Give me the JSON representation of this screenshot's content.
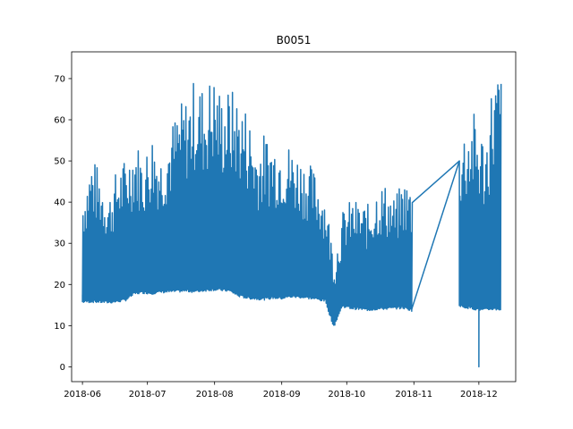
{
  "chart_data": {
    "type": "line",
    "title": "B0051",
    "xlabel": "",
    "ylabel": "",
    "x_range": [
      "2018-05-27",
      "2018-12-18"
    ],
    "ylim": [
      -3.6,
      76.5
    ],
    "x_ticks": [
      "2018-06",
      "2018-07",
      "2018-08",
      "2018-09",
      "2018-10",
      "2018-11",
      "2018-12"
    ],
    "x_tick_dates": [
      "2018-06-01",
      "2018-07-01",
      "2018-08-01",
      "2018-09-01",
      "2018-10-01",
      "2018-11-01",
      "2018-12-01"
    ],
    "y_ticks": [
      0,
      10,
      20,
      30,
      40,
      50,
      60,
      70
    ],
    "grid": false,
    "legend": "none",
    "series": [
      {
        "color": "#1f77b4",
        "x": [
          "2018-06-01",
          "2018-06-05",
          "2018-06-09",
          "2018-06-13",
          "2018-06-17",
          "2018-06-21",
          "2018-06-25",
          "2018-06-29",
          "2018-07-03",
          "2018-07-07",
          "2018-07-11",
          "2018-07-15",
          "2018-07-19",
          "2018-07-23",
          "2018-07-27",
          "2018-07-31",
          "2018-08-04",
          "2018-08-08",
          "2018-08-12",
          "2018-08-16",
          "2018-08-20",
          "2018-08-24",
          "2018-08-28",
          "2018-09-01",
          "2018-09-05",
          "2018-09-09",
          "2018-09-13",
          "2018-09-17",
          "2018-09-21",
          "2018-09-25",
          "2018-09-29",
          "2018-10-03",
          "2018-10-07",
          "2018-10-11",
          "2018-10-15",
          "2018-10-19",
          "2018-10-23",
          "2018-10-27",
          "2018-10-31",
          "2018-11-22",
          "2018-11-25",
          "2018-11-28",
          "2018-12-01",
          "2018-12-04",
          "2018-12-07",
          "2018-12-11"
        ],
        "y_min": [
          15.5,
          15.6,
          15.5,
          15.4,
          15.6,
          16.0,
          17.5,
          17.8,
          17.6,
          17.9,
          18.0,
          18.1,
          18.2,
          18.0,
          18.3,
          18.5,
          18.4,
          18.2,
          17.0,
          16.5,
          16.3,
          16.2,
          16.5,
          16.4,
          16.8,
          16.7,
          16.5,
          16.2,
          15.8,
          9.5,
          14.5,
          14.0,
          13.8,
          13.6,
          13.8,
          13.9,
          14.0,
          14.1,
          13.5,
          14.5,
          14.2,
          14.0,
          13.5,
          13.6,
          13.8,
          13.7
        ],
        "y_max": [
          43.0,
          51.5,
          47.5,
          42.0,
          49.0,
          51.0,
          56.0,
          51.0,
          57.5,
          52.5,
          58.0,
          63.5,
          66.0,
          71.0,
          68.0,
          72.0,
          67.0,
          68.0,
          66.0,
          63.0,
          55.0,
          57.0,
          56.0,
          56.0,
          54.0,
          52.0,
          50.0,
          47.0,
          42.0,
          26.5,
          38.0,
          41.0,
          40.0,
          39.5,
          45.0,
          44.5,
          41.0,
          46.0,
          44.5,
          56.5,
          60.0,
          62.5,
          59.0,
          56.0,
          71.0,
          73.0
        ],
        "y_start": 17.5,
        "y_spike_low": 0.0,
        "y_spike_date": "2018-12-01"
      }
    ]
  }
}
